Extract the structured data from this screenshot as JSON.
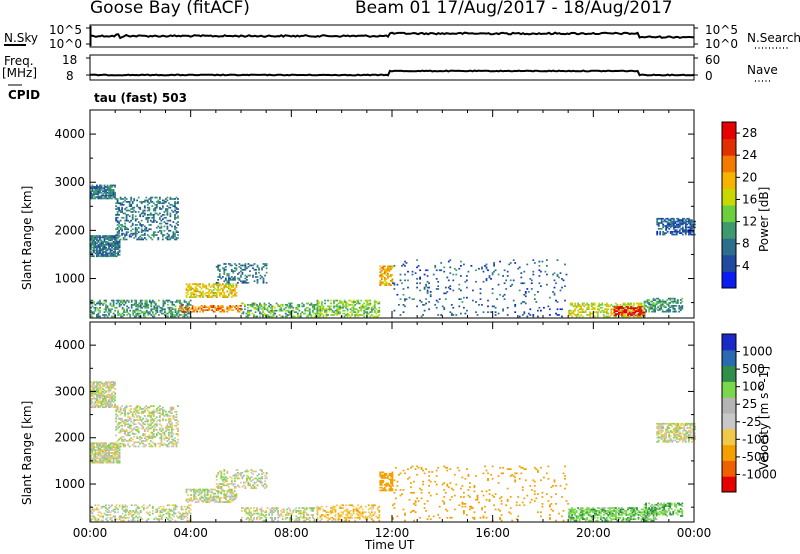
{
  "header": {
    "site": "Goose Bay (fitACF)",
    "beam_date": "Beam 01  17/Aug/2017 - 18/Aug/2017"
  },
  "panels": {
    "nsky_label": "N.Sky",
    "nsky_ticks": [
      "10^5",
      "10^0"
    ],
    "nsearch_label": "N.Search",
    "nsearch_ticks": [
      "10^5",
      "10^0"
    ],
    "freq_label": "Freq.",
    "freq_unit": "[MHz]",
    "freq_ticks": [
      "18",
      "8"
    ],
    "nave_label": "Nave",
    "nave_ticks": [
      "60",
      "0"
    ],
    "cpid_label": "CPID",
    "cpid_value": "tau (fast) 503"
  },
  "colors": {
    "power": [
      "#0b1cf0",
      "#1f4aa0",
      "#2d6e8c",
      "#3d9a6e",
      "#6ccf3e",
      "#c8d800",
      "#f4b400",
      "#f37a00",
      "#e03000",
      "#e60000"
    ],
    "velocity": [
      "#e60000",
      "#f06000",
      "#f3a000",
      "#f2c84a",
      "#c8c8c8",
      "#b4b4b4",
      "#7ad64a",
      "#2f8f4a",
      "#2a6ab0",
      "#1a2ac8"
    ]
  },
  "chart_data": [
    {
      "type": "heatmap",
      "title": "",
      "xlabel": "Time UT",
      "ylabel": "Slant Range [km]",
      "colorbar_label": "Power [dB]",
      "colorbar_ticks": [
        "4",
        "8",
        "12",
        "16",
        "20",
        "24",
        "28"
      ],
      "x_ticks": [
        "00:00",
        "04:00",
        "08:00",
        "12:00",
        "16:00",
        "20:00",
        "00:00"
      ],
      "xlim_hours": [
        0,
        24
      ],
      "ylim": [
        180,
        4500
      ],
      "y_ticks": [
        1000,
        2000,
        3000,
        4000
      ],
      "regions": [
        {
          "t": [
            0.0,
            1.2
          ],
          "r": [
            1450,
            1900
          ],
          "v": 8,
          "d": 0.8
        },
        {
          "t": [
            0.0,
            1.0
          ],
          "r": [
            2650,
            2950
          ],
          "v": 8,
          "d": 0.8
        },
        {
          "t": [
            1.0,
            3.5
          ],
          "r": [
            1800,
            2700
          ],
          "v": 8,
          "d": 0.35
        },
        {
          "t": [
            0.0,
            4.0
          ],
          "r": [
            200,
            550
          ],
          "v": 10,
          "d": 0.45
        },
        {
          "t": [
            3.8,
            5.8
          ],
          "r": [
            600,
            900
          ],
          "v": 18,
          "d": 0.55
        },
        {
          "t": [
            3.5,
            6.0
          ],
          "r": [
            300,
            450
          ],
          "v": 22,
          "d": 0.5
        },
        {
          "t": [
            5.0,
            7.0
          ],
          "r": [
            900,
            1300
          ],
          "v": 8,
          "d": 0.3
        },
        {
          "t": [
            6.0,
            9.0
          ],
          "r": [
            200,
            500
          ],
          "v": 12,
          "d": 0.4
        },
        {
          "t": [
            9.0,
            11.5
          ],
          "r": [
            200,
            550
          ],
          "v": 14,
          "d": 0.45
        },
        {
          "t": [
            11.5,
            12.0
          ],
          "r": [
            850,
            1250
          ],
          "v": 20,
          "d": 0.6
        },
        {
          "t": [
            12.0,
            19.0
          ],
          "r": [
            200,
            1400
          ],
          "v": 6,
          "d": 0.06
        },
        {
          "t": [
            19.0,
            22.0
          ],
          "r": [
            200,
            500
          ],
          "v": 16,
          "d": 0.5
        },
        {
          "t": [
            20.8,
            22.0
          ],
          "r": [
            220,
            420
          ],
          "v": 28,
          "d": 0.6
        },
        {
          "t": [
            22.0,
            23.5
          ],
          "r": [
            300,
            600
          ],
          "v": 10,
          "d": 0.5
        },
        {
          "t": [
            22.5,
            24.0
          ],
          "r": [
            1900,
            2250
          ],
          "v": 6,
          "d": 0.6
        }
      ]
    },
    {
      "type": "heatmap",
      "title": "",
      "xlabel": "Time UT",
      "ylabel": "Slant Range [km]",
      "colorbar_label": "Velocity [m s^-1]",
      "colorbar_ticks": [
        "-1000",
        "-500",
        "-100",
        "-25",
        "25",
        "100",
        "500",
        "1000"
      ],
      "x_ticks": [
        "00:00",
        "04:00",
        "08:00",
        "12:00",
        "16:00",
        "20:00",
        "00:00"
      ],
      "xlim_hours": [
        0,
        24
      ],
      "ylim": [
        180,
        4500
      ],
      "y_ticks": [
        1000,
        2000,
        3000,
        4000
      ],
      "regions": [
        {
          "t": [
            0.0,
            1.2
          ],
          "r": [
            1450,
            1900
          ],
          "v": 0,
          "d": 0.8
        },
        {
          "t": [
            0.0,
            1.0
          ],
          "r": [
            2650,
            3200
          ],
          "v": 0,
          "d": 0.7
        },
        {
          "t": [
            1.0,
            3.5
          ],
          "r": [
            1800,
            2700
          ],
          "v": 0,
          "d": 0.35
        },
        {
          "t": [
            0.0,
            4.0
          ],
          "r": [
            200,
            550
          ],
          "v": 0,
          "d": 0.35
        },
        {
          "t": [
            3.8,
            5.8
          ],
          "r": [
            600,
            900
          ],
          "v": 0,
          "d": 0.55
        },
        {
          "t": [
            5.0,
            7.0
          ],
          "r": [
            900,
            1300
          ],
          "v": 0,
          "d": 0.3
        },
        {
          "t": [
            6.0,
            9.0
          ],
          "r": [
            200,
            500
          ],
          "v": 0,
          "d": 0.4
        },
        {
          "t": [
            9.0,
            11.5
          ],
          "r": [
            200,
            550
          ],
          "v": -80,
          "d": 0.35
        },
        {
          "t": [
            11.5,
            12.0
          ],
          "r": [
            850,
            1250
          ],
          "v": -300,
          "d": 0.6
        },
        {
          "t": [
            12.0,
            19.0
          ],
          "r": [
            200,
            1400
          ],
          "v": -200,
          "d": 0.06
        },
        {
          "t": [
            19.0,
            22.5
          ],
          "r": [
            200,
            500
          ],
          "v": 80,
          "d": 0.55
        },
        {
          "t": [
            22.0,
            23.5
          ],
          "r": [
            300,
            600
          ],
          "v": 80,
          "d": 0.5
        },
        {
          "t": [
            22.5,
            24.0
          ],
          "r": [
            1900,
            2300
          ],
          "v": 0,
          "d": 0.6
        }
      ]
    }
  ]
}
